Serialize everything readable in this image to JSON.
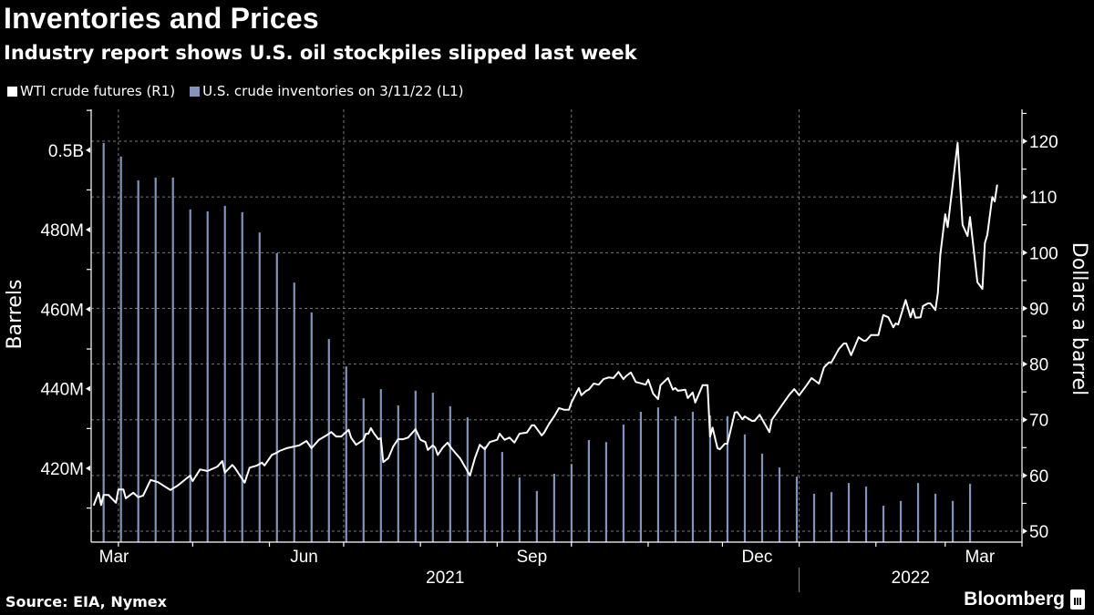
{
  "header": {
    "title": "Inventories and Prices",
    "subtitle": "Industry report shows U.S. oil stockpiles slipped last week"
  },
  "legend": [
    {
      "label": "WTI crude futures (R1)",
      "color": "#ffffff"
    },
    {
      "label": "U.S. crude inventories on 3/11/22 (L1)",
      "color": "#8293bf"
    }
  ],
  "footer": {
    "source": "Source: EIA, Nymex",
    "logo": "Bloomberg"
  },
  "chart_data": {
    "type": "bar",
    "title": "Inventories and Prices",
    "subtitle": "Industry report shows U.S. oil stockpiles slipped last week",
    "ylabel_left": "Barrels",
    "ylabel_right": "Dollars a barrel",
    "xlim": [
      "2021-03-21",
      "2022-04-01"
    ],
    "ylim_left": [
      401.44,
      510.26
    ],
    "ylim_right": [
      48.04,
      125.73
    ],
    "grid": true,
    "legend_position": "top-left",
    "x_month_ticks": [
      "2021-04-01",
      "2021-05-01",
      "2021-06-01",
      "2021-07-01",
      "2021-08-01",
      "2021-09-01",
      "2021-10-01",
      "2021-11-01",
      "2021-12-01",
      "2022-01-01",
      "2022-02-01",
      "2022-03-01",
      "2022-04-01"
    ],
    "x_gridlines": [
      "2021-04-01",
      "2021-07-01",
      "2021-10-01",
      "2022-01-01"
    ],
    "x_labels": [
      {
        "label": "Mar",
        "date": "2021-03-15"
      },
      {
        "label": "Jun",
        "date": "2021-06-15"
      },
      {
        "label": "Sep",
        "date": "2021-09-15"
      },
      {
        "label": "Dec",
        "date": "2021-12-15"
      },
      {
        "label": "Mar",
        "date": "2022-03-15"
      }
    ],
    "year_labels": [
      {
        "label": "2021",
        "from": "2021-03-21",
        "to": "2022-01-01"
      },
      {
        "label": "2022",
        "from": "2022-01-01",
        "to": "2022-04-01"
      }
    ],
    "year_divider": "2022-01-01",
    "left_ticks": [
      {
        "label": "0.5B",
        "value": 500
      },
      {
        "label": "480M",
        "value": 480
      },
      {
        "label": "460M",
        "value": 460
      },
      {
        "label": "440M",
        "value": 440
      },
      {
        "label": "420M",
        "value": 420
      }
    ],
    "left_minor_ticks": [
      410,
      430,
      450,
      470,
      490,
      510
    ],
    "right_ticks": [
      {
        "label": "50",
        "value": 50
      },
      {
        "label": "60",
        "value": 60
      },
      {
        "label": "70",
        "value": 70
      },
      {
        "label": "80",
        "value": 80
      },
      {
        "label": "90",
        "value": 90
      },
      {
        "label": "100",
        "value": 100
      },
      {
        "label": "110",
        "value": 110
      },
      {
        "label": "120",
        "value": 120
      }
    ],
    "right_minor_ticks": [
      55,
      65,
      75,
      85,
      95,
      105,
      115,
      125
    ],
    "series": [
      {
        "name": "U.S. crude inventories on 3/11/22 (L1)",
        "type": "bar",
        "axis": "left",
        "unit": "million barrels",
        "color": "#8293bf",
        "x": [
          "2021-03-26",
          "2021-04-02",
          "2021-04-09",
          "2021-04-16",
          "2021-04-23",
          "2021-04-30",
          "2021-05-07",
          "2021-05-14",
          "2021-05-21",
          "2021-05-28",
          "2021-06-04",
          "2021-06-11",
          "2021-06-18",
          "2021-06-25",
          "2021-07-02",
          "2021-07-09",
          "2021-07-16",
          "2021-07-23",
          "2021-07-30",
          "2021-08-06",
          "2021-08-13",
          "2021-08-20",
          "2021-08-27",
          "2021-09-03",
          "2021-09-10",
          "2021-09-17",
          "2021-09-24",
          "2021-10-01",
          "2021-10-08",
          "2021-10-15",
          "2021-10-22",
          "2021-10-29",
          "2021-11-05",
          "2021-11-12",
          "2021-11-19",
          "2021-11-26",
          "2021-12-03",
          "2021-12-10",
          "2021-12-17",
          "2021-12-24",
          "2021-12-31",
          "2022-01-07",
          "2022-01-14",
          "2022-01-21",
          "2022-01-28",
          "2022-02-04",
          "2022-02-11",
          "2022-02-18",
          "2022-02-25",
          "2022-03-04",
          "2022-03-11"
        ],
        "values": [
          501.8,
          498.4,
          492.4,
          493.1,
          493.1,
          485.1,
          484.6,
          486.0,
          484.4,
          479.3,
          474.1,
          466.7,
          459.2,
          452.5,
          445.6,
          437.6,
          439.9,
          435.8,
          439.5,
          439.0,
          435.6,
          432.8,
          425.5,
          424.1,
          417.7,
          414.3,
          418.6,
          421.1,
          427.1,
          426.6,
          431.0,
          434.2,
          435.3,
          433.1,
          434.2,
          433.3,
          433.1,
          428.5,
          423.7,
          420.2,
          417.9,
          413.6,
          414.0,
          416.3,
          415.4,
          410.6,
          411.8,
          416.3,
          413.6,
          411.8,
          416.1
        ]
      },
      {
        "name": "WTI crude futures (R1)",
        "type": "line",
        "axis": "right",
        "unit": "USD per barrel",
        "color": "#ffffff",
        "points": [
          [
            "2021-03-22",
            54.6
          ],
          [
            "2021-03-24",
            56.9
          ],
          [
            "2021-03-25",
            54.7
          ],
          [
            "2021-03-26",
            56.5
          ],
          [
            "2021-03-28",
            56.5
          ],
          [
            "2021-03-31",
            55.1
          ],
          [
            "2021-04-01",
            57.5
          ],
          [
            "2021-04-03",
            57.5
          ],
          [
            "2021-04-04",
            55.9
          ],
          [
            "2021-04-07",
            56.9
          ],
          [
            "2021-04-09",
            56.1
          ],
          [
            "2021-04-11",
            56.4
          ],
          [
            "2021-04-14",
            59.2
          ],
          [
            "2021-04-17",
            58.8
          ],
          [
            "2021-04-22",
            57.4
          ],
          [
            "2021-04-25",
            58.2
          ],
          [
            "2021-04-30",
            60.0
          ],
          [
            "2021-05-01",
            59.0
          ],
          [
            "2021-05-04",
            61.1
          ],
          [
            "2021-05-07",
            60.8
          ],
          [
            "2021-05-11",
            61.6
          ],
          [
            "2021-05-13",
            62.6
          ],
          [
            "2021-05-14",
            60.5
          ],
          [
            "2021-05-17",
            61.9
          ],
          [
            "2021-05-18",
            61.4
          ],
          [
            "2021-05-22",
            58.7
          ],
          [
            "2021-05-24",
            61.4
          ],
          [
            "2021-05-27",
            61.8
          ],
          [
            "2021-05-29",
            62.3
          ],
          [
            "2021-05-30",
            61.8
          ],
          [
            "2021-06-02",
            63.7
          ],
          [
            "2021-06-04",
            64.1
          ],
          [
            "2021-06-05",
            64.4
          ],
          [
            "2021-06-08",
            64.9
          ],
          [
            "2021-06-13",
            65.4
          ],
          [
            "2021-06-16",
            66.2
          ],
          [
            "2021-06-18",
            64.9
          ],
          [
            "2021-06-21",
            66.4
          ],
          [
            "2021-06-24",
            67.2
          ],
          [
            "2021-06-26",
            67.8
          ],
          [
            "2021-06-28",
            67.0
          ],
          [
            "2021-06-30",
            67.0
          ],
          [
            "2021-07-03",
            68.2
          ],
          [
            "2021-07-04",
            66.8
          ],
          [
            "2021-07-06",
            65.5
          ],
          [
            "2021-07-09",
            66.4
          ],
          [
            "2021-07-10",
            67.5
          ],
          [
            "2021-07-11",
            67.5
          ],
          [
            "2021-07-12",
            68.5
          ],
          [
            "2021-07-13",
            67.7
          ],
          [
            "2021-07-15",
            66.5
          ],
          [
            "2021-07-16",
            66.7
          ],
          [
            "2021-07-17",
            62.4
          ],
          [
            "2021-07-19",
            63.1
          ],
          [
            "2021-07-21",
            65.2
          ],
          [
            "2021-07-23",
            66.5
          ],
          [
            "2021-07-25",
            66.5
          ],
          [
            "2021-07-27",
            66.8
          ],
          [
            "2021-07-30",
            68.3
          ],
          [
            "2021-08-01",
            66.4
          ],
          [
            "2021-08-03",
            66.0
          ],
          [
            "2021-08-04",
            64.6
          ],
          [
            "2021-08-06",
            65.4
          ],
          [
            "2021-08-07",
            65.0
          ],
          [
            "2021-08-08",
            63.7
          ],
          [
            "2021-08-10",
            65.0
          ],
          [
            "2021-08-12",
            65.9
          ],
          [
            "2021-08-13",
            65.2
          ],
          [
            "2021-08-15",
            64.1
          ],
          [
            "2021-08-17",
            63.1
          ],
          [
            "2021-08-21",
            60.0
          ],
          [
            "2021-08-23",
            63.1
          ],
          [
            "2021-08-25",
            65.5
          ],
          [
            "2021-08-27",
            64.7
          ],
          [
            "2021-08-29",
            66.0
          ],
          [
            "2021-09-01",
            66.4
          ],
          [
            "2021-09-02",
            67.5
          ],
          [
            "2021-09-04",
            66.4
          ],
          [
            "2021-09-06",
            66.8
          ],
          [
            "2021-09-08",
            65.9
          ],
          [
            "2021-09-10",
            67.5
          ],
          [
            "2021-09-13",
            67.7
          ],
          [
            "2021-09-15",
            69.0
          ],
          [
            "2021-09-16",
            69.0
          ],
          [
            "2021-09-19",
            67.2
          ],
          [
            "2021-09-20",
            67.7
          ],
          [
            "2021-09-22",
            69.3
          ],
          [
            "2021-09-24",
            70.6
          ],
          [
            "2021-09-26",
            72.1
          ],
          [
            "2021-09-28",
            71.8
          ],
          [
            "2021-09-30",
            71.8
          ],
          [
            "2021-10-01",
            73.1
          ],
          [
            "2021-10-04",
            75.7
          ],
          [
            "2021-10-05",
            74.4
          ],
          [
            "2021-10-07",
            75.2
          ],
          [
            "2021-10-08",
            75.4
          ],
          [
            "2021-10-10",
            76.5
          ],
          [
            "2021-10-12",
            76.3
          ],
          [
            "2021-10-14",
            77.3
          ],
          [
            "2021-10-16",
            77.6
          ],
          [
            "2021-10-18",
            77.5
          ],
          [
            "2021-10-20",
            78.6
          ],
          [
            "2021-10-22",
            77.3
          ],
          [
            "2021-10-23",
            77.8
          ],
          [
            "2021-10-25",
            78.5
          ],
          [
            "2021-10-27",
            76.8
          ],
          [
            "2021-10-31",
            76.3
          ],
          [
            "2021-11-01",
            77.2
          ],
          [
            "2021-11-03",
            74.7
          ],
          [
            "2021-11-05",
            73.7
          ],
          [
            "2021-11-06",
            76.2
          ],
          [
            "2021-11-09",
            77.5
          ],
          [
            "2021-11-11",
            75.4
          ],
          [
            "2021-11-12",
            75.7
          ],
          [
            "2021-11-13",
            75.2
          ],
          [
            "2021-11-16",
            75.4
          ],
          [
            "2021-11-17",
            73.9
          ],
          [
            "2021-11-19",
            74.9
          ],
          [
            "2021-11-20",
            73.1
          ],
          [
            "2021-11-23",
            76.2
          ],
          [
            "2021-11-25",
            76.2
          ],
          [
            "2021-11-26",
            67.0
          ],
          [
            "2021-11-27",
            68.6
          ],
          [
            "2021-11-29",
            64.9
          ],
          [
            "2021-11-30",
            64.7
          ],
          [
            "2021-12-02",
            65.7
          ],
          [
            "2021-12-03",
            65.7
          ],
          [
            "2021-12-06",
            71.3
          ],
          [
            "2021-12-07",
            71.4
          ],
          [
            "2021-12-09",
            70.1
          ],
          [
            "2021-12-10",
            70.6
          ],
          [
            "2021-12-13",
            69.8
          ],
          [
            "2021-12-14",
            69.8
          ],
          [
            "2021-12-16",
            70.9
          ],
          [
            "2021-12-20",
            67.8
          ],
          [
            "2021-12-21",
            70.0
          ],
          [
            "2021-12-25",
            72.6
          ],
          [
            "2021-12-28",
            74.5
          ],
          [
            "2021-12-30",
            75.5
          ],
          [
            "2022-01-01",
            74.4
          ],
          [
            "2022-01-02",
            75.0
          ],
          [
            "2022-01-04",
            76.2
          ],
          [
            "2022-01-06",
            77.5
          ],
          [
            "2022-01-09",
            76.5
          ],
          [
            "2022-01-11",
            79.4
          ],
          [
            "2022-01-13",
            80.3
          ],
          [
            "2022-01-14",
            80.3
          ],
          [
            "2022-01-17",
            82.7
          ],
          [
            "2022-01-19",
            83.7
          ],
          [
            "2022-01-20",
            83.7
          ],
          [
            "2022-01-22",
            81.6
          ],
          [
            "2022-01-25",
            84.8
          ],
          [
            "2022-01-27",
            84.2
          ],
          [
            "2022-01-28",
            84.2
          ],
          [
            "2022-01-30",
            85.2
          ],
          [
            "2022-02-02",
            85.2
          ],
          [
            "2022-02-04",
            88.8
          ],
          [
            "2022-02-06",
            88.4
          ],
          [
            "2022-02-08",
            86.6
          ],
          [
            "2022-02-09",
            87.3
          ],
          [
            "2022-02-10",
            87.1
          ],
          [
            "2022-02-13",
            91.5
          ],
          [
            "2022-02-15",
            88.4
          ],
          [
            "2022-02-16",
            89.9
          ],
          [
            "2022-02-17",
            88.3
          ],
          [
            "2022-02-19",
            88.4
          ],
          [
            "2022-02-20",
            90.4
          ],
          [
            "2022-02-22",
            90.9
          ],
          [
            "2022-02-23",
            90.9
          ],
          [
            "2022-02-25",
            89.7
          ],
          [
            "2022-02-26",
            92.7
          ],
          [
            "2022-02-27",
            99.6
          ],
          [
            "2022-03-01",
            106.9
          ],
          [
            "2022-03-02",
            104.6
          ],
          [
            "2022-03-04",
            112.2
          ],
          [
            "2022-03-06",
            119.7
          ],
          [
            "2022-03-08",
            105.0
          ],
          [
            "2022-03-10",
            103.0
          ],
          [
            "2022-03-11",
            106.4
          ],
          [
            "2022-03-14",
            94.7
          ],
          [
            "2022-03-16",
            93.5
          ],
          [
            "2022-03-17",
            101.7
          ],
          [
            "2022-03-18",
            103.2
          ],
          [
            "2022-03-20",
            110.0
          ],
          [
            "2022-03-21",
            109.2
          ],
          [
            "2022-03-22",
            112.2
          ]
        ]
      }
    ]
  }
}
